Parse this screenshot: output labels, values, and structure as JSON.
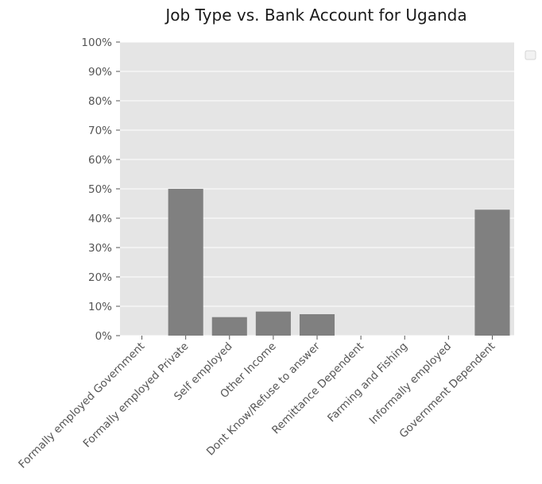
{
  "chart_data": {
    "type": "bar",
    "title": "Job Type vs. Bank Account for Uganda",
    "xlabel": "",
    "ylabel": "",
    "categories": [
      "Formally employed Government",
      "Formally employed Private",
      "Self employed",
      "Other Income",
      "Dont Know/Refuse to answer",
      "Remittance Dependent",
      "Farming and Fishing",
      "Informally employed",
      "Government Dependent"
    ],
    "values": [
      0,
      50,
      6.3,
      8.2,
      7.3,
      0,
      0,
      0,
      42.9
    ],
    "ylim": [
      0,
      100
    ],
    "y_ticks": [
      "0%",
      "10%",
      "20%",
      "30%",
      "40%",
      "50%",
      "60%",
      "70%",
      "80%",
      "90%",
      "100%"
    ],
    "grid": true,
    "legend": "top-right (empty)",
    "colors": {
      "bar": "#808080",
      "plot_background": "#e5e5e5",
      "grid": "#ffffff",
      "tick_text": "#555555"
    }
  }
}
